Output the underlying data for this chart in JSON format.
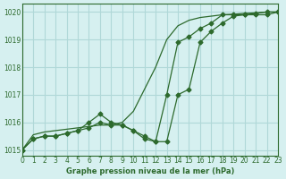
{
  "title": "Graphe pression niveau de la mer (hPa)",
  "background_color": "#d6f0f0",
  "grid_color": "#b0d8d8",
  "line_color": "#2d6a2d",
  "xlim": [
    0,
    23
  ],
  "ylim": [
    1014.8,
    1020.3
  ],
  "yticks": [
    1015,
    1016,
    1017,
    1018,
    1019,
    1020
  ],
  "xticks": [
    0,
    1,
    2,
    3,
    4,
    5,
    6,
    7,
    8,
    9,
    10,
    11,
    12,
    13,
    14,
    15,
    16,
    17,
    18,
    19,
    20,
    21,
    22,
    23
  ],
  "series1_x": [
    0,
    1,
    2,
    3,
    4,
    5,
    6,
    7,
    8,
    9,
    10,
    11,
    12,
    13,
    14,
    15,
    16,
    17,
    18,
    19,
    20,
    21,
    22,
    23
  ],
  "series1_y": [
    1015.0,
    1015.4,
    1015.5,
    1015.5,
    1015.6,
    1015.7,
    1015.8,
    1016.0,
    1015.9,
    1015.9,
    1015.7,
    1015.4,
    1015.3,
    1017.0,
    1018.9,
    1019.1,
    1019.4,
    1019.6,
    1019.9,
    1019.9,
    1019.9,
    1019.9,
    1019.9,
    1020.0
  ],
  "series2_x": [
    0,
    1,
    2,
    3,
    4,
    5,
    6,
    7,
    8,
    9,
    10,
    11,
    12,
    13,
    14,
    15,
    16,
    17,
    18,
    19,
    20,
    21,
    22,
    23
  ],
  "series2_y": [
    1015.0,
    1015.4,
    1015.5,
    1015.5,
    1015.6,
    1015.7,
    1016.0,
    1016.3,
    1016.0,
    1015.9,
    1015.7,
    1015.5,
    1015.3,
    1015.3,
    1017.0,
    1017.2,
    1018.9,
    1019.3,
    1019.6,
    1019.85,
    1019.9,
    1019.95,
    1020.0,
    1020.0
  ],
  "series3_x": [
    0,
    1,
    2,
    3,
    4,
    5,
    6,
    7,
    8,
    9,
    10,
    11,
    12,
    13,
    14,
    15,
    16,
    17,
    18,
    19,
    20,
    21,
    22,
    23
  ],
  "series3_y": [
    1015.0,
    1015.55,
    1015.65,
    1015.7,
    1015.75,
    1015.8,
    1015.85,
    1015.9,
    1015.9,
    1016.0,
    1016.4,
    1017.2,
    1018.0,
    1019.0,
    1019.5,
    1019.7,
    1019.8,
    1019.85,
    1019.9,
    1019.92,
    1019.95,
    1019.97,
    1020.0,
    1020.0
  ]
}
